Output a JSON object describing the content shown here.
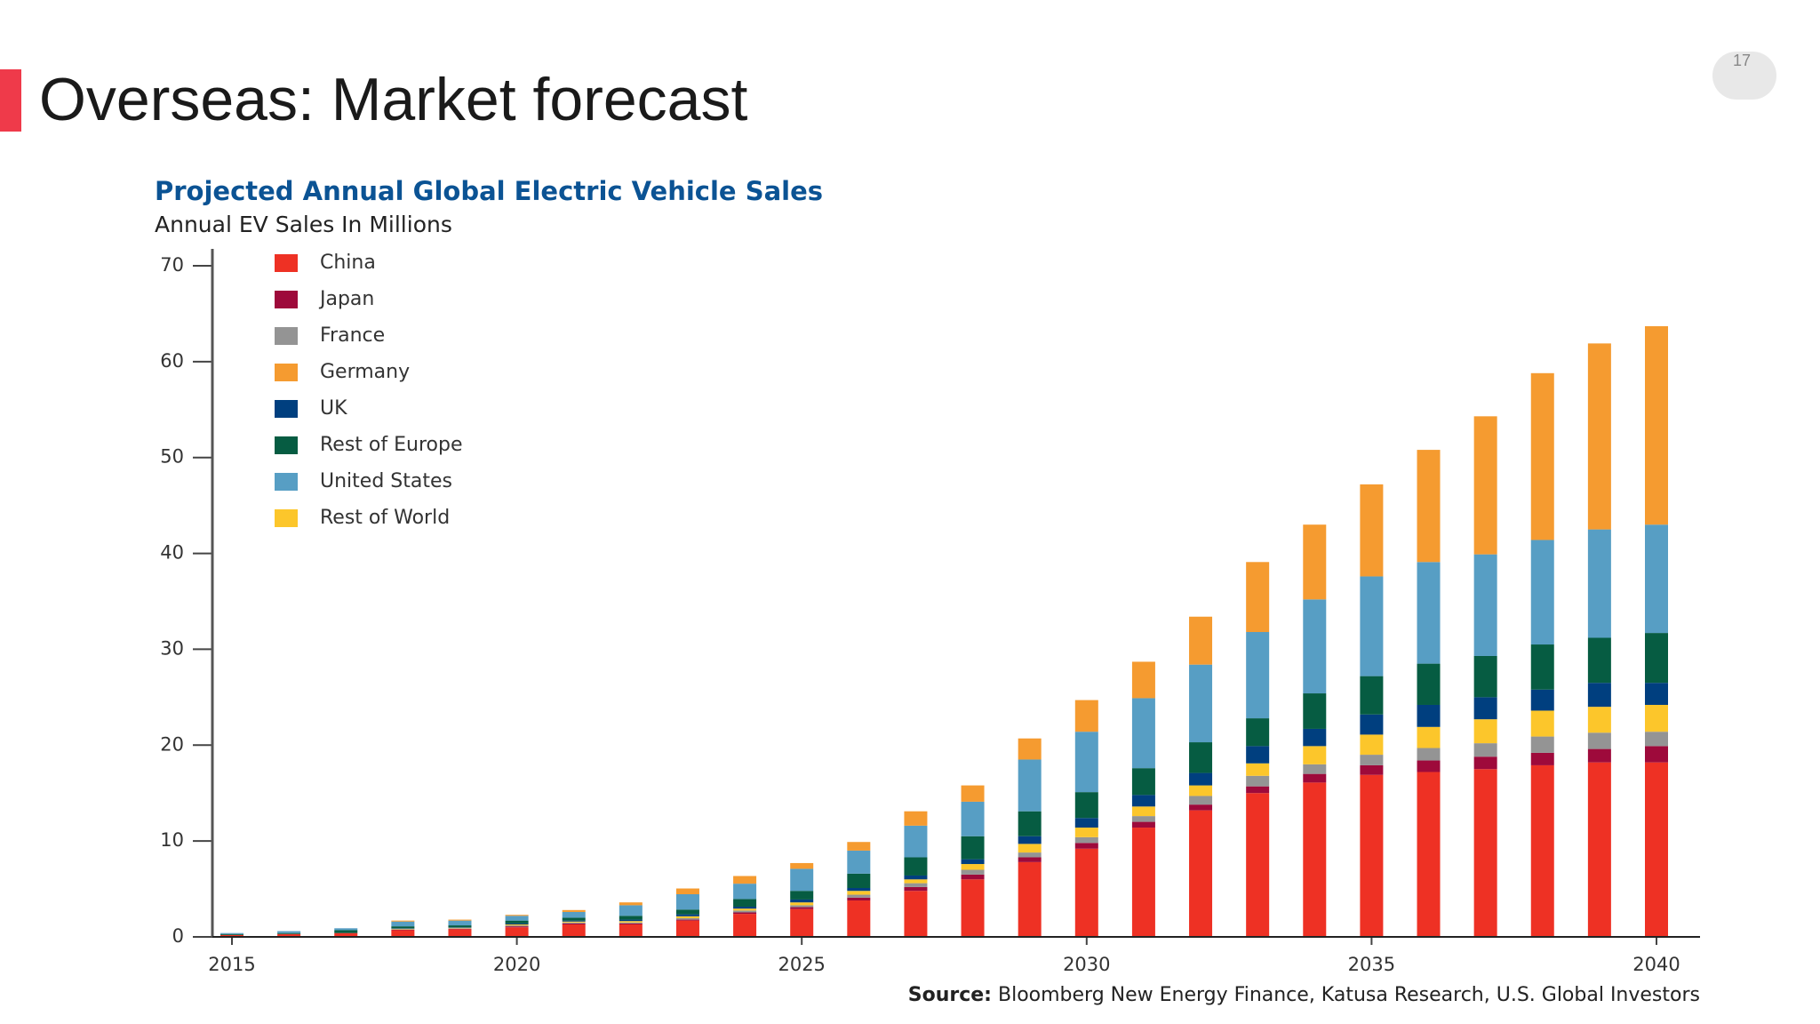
{
  "page_title": "Overseas: Market forecast",
  "page_number": "17",
  "chart_data": {
    "type": "stacked_bar",
    "title": "Projected Annual Global Electric Vehicle Sales",
    "subtitle": "Annual EV Sales In Millions",
    "source_label": "Source:",
    "source": "Bloomberg New Energy Finance, Katusa Research, U.S. Global Investors",
    "x": [
      2015,
      2016,
      2017,
      2018,
      2019,
      2020,
      2021,
      2022,
      2023,
      2024,
      2025,
      2026,
      2027,
      2028,
      2029,
      2030,
      2031,
      2032,
      2033,
      2034,
      2035,
      2036,
      2037,
      2038,
      2039,
      2040
    ],
    "xlim": [
      2014.3,
      2041.5
    ],
    "xticks": [
      2015,
      2020,
      2025,
      2030,
      2035,
      2040
    ],
    "ylim": [
      0,
      70
    ],
    "yticks": [
      0,
      10,
      20,
      30,
      40,
      50,
      60,
      70
    ],
    "legend": "upper left",
    "stack_order": [
      0,
      1,
      2,
      7,
      4,
      5,
      6,
      3
    ],
    "series": [
      {
        "name": "China",
        "color": "#ee3124",
        "values": [
          0.2,
          0.3,
          0.4,
          0.7,
          0.8,
          1.0,
          1.3,
          1.3,
          1.7,
          2.4,
          2.9,
          3.8,
          4.8,
          6.0,
          7.8,
          9.2,
          11.4,
          13.2,
          15.0,
          16.1,
          16.9,
          17.2,
          17.5,
          17.9,
          18.2,
          18.2
        ]
      },
      {
        "name": "Japan",
        "color": "#9e0a3b",
        "values": [
          0,
          0,
          0,
          0.05,
          0.05,
          0.1,
          0.1,
          0.1,
          0.1,
          0.15,
          0.2,
          0.3,
          0.4,
          0.5,
          0.5,
          0.6,
          0.6,
          0.6,
          0.7,
          0.9,
          1.0,
          1.2,
          1.3,
          1.3,
          1.4,
          1.7
        ]
      },
      {
        "name": "France",
        "color": "#949494",
        "values": [
          0,
          0,
          0,
          0.05,
          0.05,
          0.1,
          0.1,
          0.1,
          0.15,
          0.2,
          0.2,
          0.3,
          0.4,
          0.5,
          0.5,
          0.6,
          0.6,
          0.9,
          1.1,
          1.0,
          1.1,
          1.3,
          1.4,
          1.7,
          1.7,
          1.5
        ]
      },
      {
        "name": "Germany",
        "color": "#f59b30",
        "values": [
          0,
          0,
          0,
          0.1,
          0.1,
          0.1,
          0.2,
          0.3,
          0.6,
          0.8,
          0.6,
          0.9,
          1.5,
          1.7,
          2.2,
          3.3,
          3.8,
          5.0,
          7.3,
          7.8,
          9.6,
          11.7,
          14.4,
          17.4,
          19.4,
          20.7
        ]
      },
      {
        "name": "UK",
        "color": "#003f7f",
        "values": [
          0,
          0,
          0,
          0.05,
          0.05,
          0.1,
          0.1,
          0.15,
          0.2,
          0.2,
          0.3,
          0.3,
          0.4,
          0.5,
          0.8,
          1.0,
          1.2,
          1.3,
          1.8,
          1.8,
          2.1,
          2.3,
          2.3,
          2.2,
          2.5,
          2.3
        ]
      },
      {
        "name": "Rest of Europe",
        "color": "#065c42",
        "values": [
          0.1,
          0.1,
          0.3,
          0.2,
          0.2,
          0.3,
          0.3,
          0.4,
          0.5,
          0.8,
          0.9,
          1.5,
          1.9,
          2.4,
          2.6,
          2.7,
          2.8,
          3.2,
          2.9,
          3.7,
          4.0,
          4.3,
          4.3,
          4.7,
          4.7,
          5.2
        ]
      },
      {
        "name": "United States",
        "color": "#579ec4",
        "values": [
          0.1,
          0.2,
          0.2,
          0.5,
          0.5,
          0.5,
          0.6,
          1.1,
          1.6,
          1.6,
          2.3,
          2.4,
          3.3,
          3.6,
          5.4,
          6.3,
          7.3,
          8.1,
          9.0,
          9.8,
          10.4,
          10.6,
          10.6,
          10.9,
          11.3,
          11.3
        ]
      },
      {
        "name": "Rest of World",
        "color": "#fcc62b",
        "values": [
          0,
          0,
          0,
          0.05,
          0.05,
          0.1,
          0.1,
          0.15,
          0.2,
          0.2,
          0.3,
          0.4,
          0.4,
          0.6,
          0.9,
          1.0,
          1.0,
          1.1,
          1.3,
          1.9,
          2.1,
          2.2,
          2.5,
          2.7,
          2.7,
          2.8
        ]
      }
    ]
  }
}
